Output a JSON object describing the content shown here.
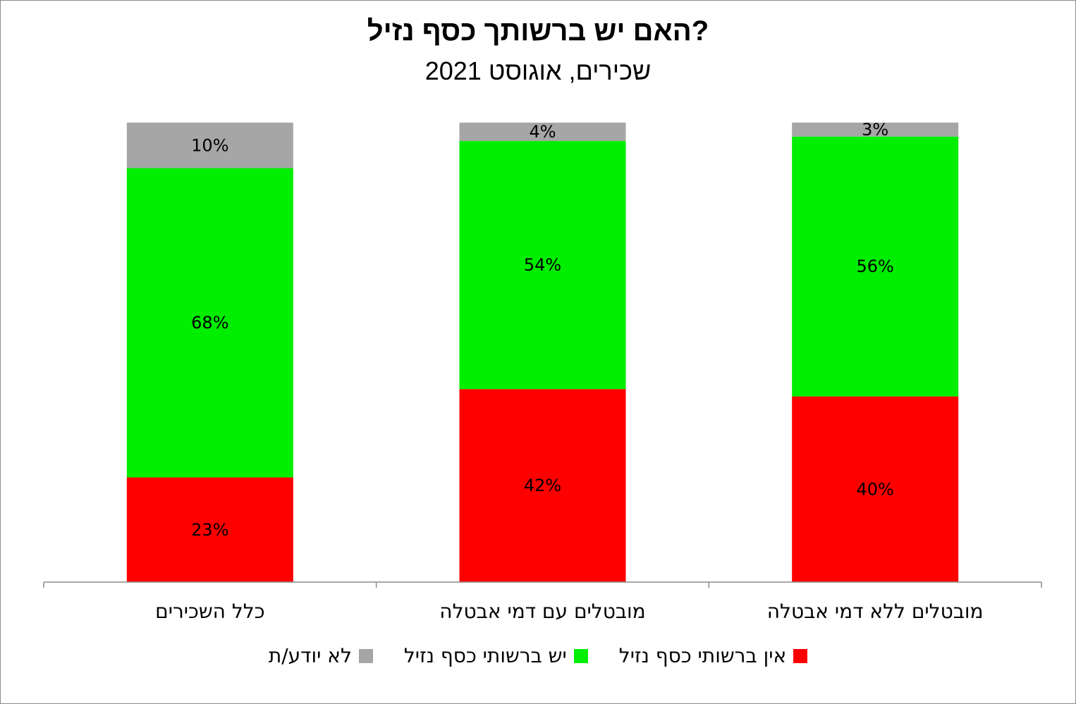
{
  "chart_data": {
    "type": "bar",
    "stacked": true,
    "title": "האם יש ברשותך כסף נזיל?",
    "subtitle": "שכירים, אוגוסט 2021",
    "categories": [
      "כלל השכירים",
      "מובטלים עם דמי אבטלה",
      "מובטלים ללא דמי אבטלה"
    ],
    "series": [
      {
        "name": "אין ברשותי כסף נזיל",
        "color": "#ff0000",
        "values": [
          23,
          42,
          40
        ],
        "labels": [
          "23%",
          "42%",
          "40%"
        ]
      },
      {
        "name": "יש ברשותי כסף נזיל",
        "color": "#00ee00",
        "values": [
          68,
          54,
          56
        ],
        "labels": [
          "68%",
          "54%",
          "56%"
        ]
      },
      {
        "name": "לא יודע/ת",
        "color": "#a6a6a6",
        "values": [
          10,
          4,
          3
        ],
        "labels": [
          "10%",
          "4%",
          "3%"
        ]
      }
    ],
    "legend_position": "bottom",
    "grid": false
  }
}
